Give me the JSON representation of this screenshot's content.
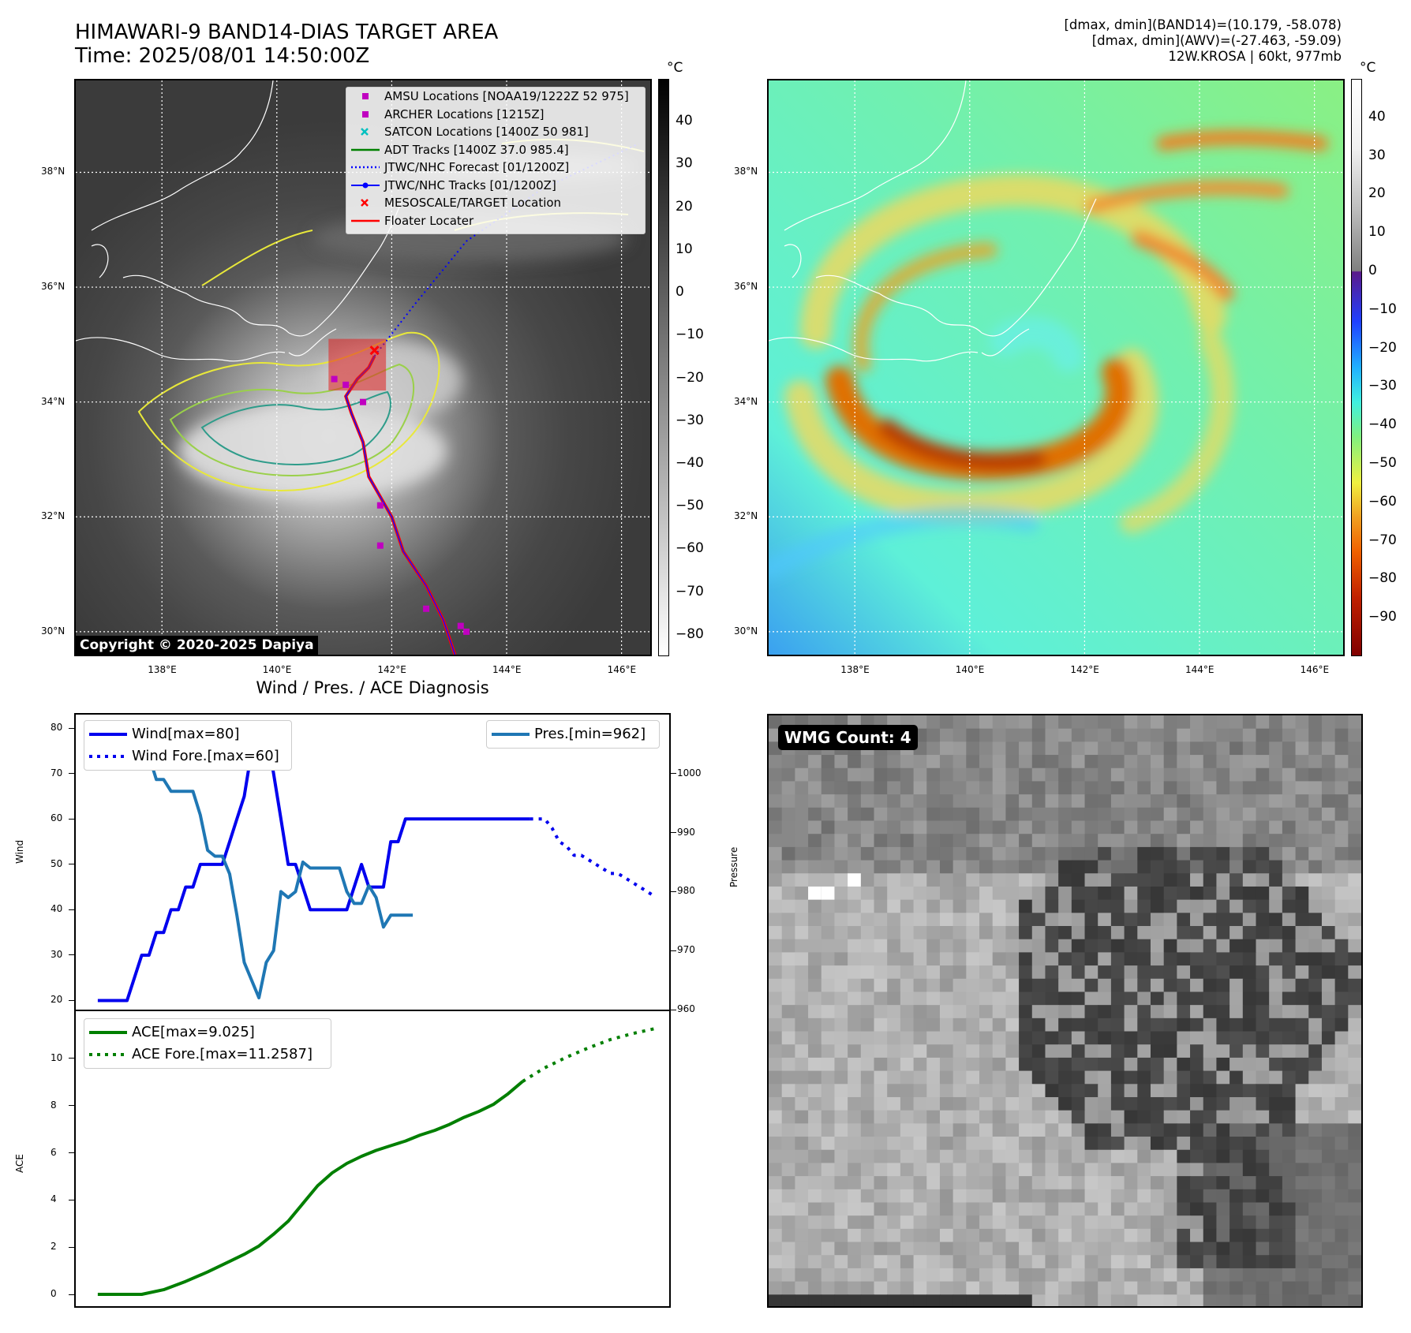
{
  "header": {
    "title": "HIMAWARI-9 BAND14-DIAS TARGET AREA",
    "time": "Time: 2025/08/01 14:50:00Z",
    "info_lines": [
      "[dmax, dmin](BAND14)=(10.179, -58.078)",
      "[dmax, dmin](AWV)=(-27.463, -59.09)",
      "12W.KROSA | 60kt, 977mb"
    ]
  },
  "map": {
    "lat_labels": [
      "38°N",
      "36°N",
      "34°N",
      "32°N",
      "30°N"
    ],
    "lat_values": [
      38,
      36,
      34,
      32,
      30
    ],
    "lon_labels": [
      "138°E",
      "140°E",
      "142°E",
      "144°E",
      "146°E"
    ],
    "lon_values": [
      138,
      140,
      142,
      144,
      146
    ],
    "lon_range": [
      136.5,
      146.5
    ],
    "lat_range": [
      29.6,
      39.6
    ],
    "copyright": "Copyright © 2020-2025 Dapiya",
    "legend": [
      {
        "label": "AMSU Locations [NOAA19/1222Z 52 975]",
        "marker": "square",
        "color": "#c000c0"
      },
      {
        "label": "ARCHER Locations [1215Z]",
        "marker": "square",
        "color": "#c000c0"
      },
      {
        "label": "SATCON Locations [1400Z 50 981]",
        "marker": "x",
        "color": "#00c0c0"
      },
      {
        "label": "ADT Tracks [1400Z 37.0 985.4]",
        "marker": "line",
        "color": "#008000"
      },
      {
        "label": "JTWC/NHC Forecast [01/1200Z]",
        "marker": "dotted",
        "color": "#0000ff"
      },
      {
        "label": "JTWC/NHC Tracks [01/1200Z]",
        "marker": "line-dot",
        "color": "#0000ff"
      },
      {
        "label": "MESOSCALE/TARGET Location",
        "marker": "x",
        "color": "#ff0000"
      },
      {
        "label": "Floater Locater",
        "marker": "line",
        "color": "#ff0000"
      }
    ],
    "track_color": "#ff0000",
    "forecast_color": "#0000ff"
  },
  "colorbar_gray": {
    "unit": "°C",
    "ticks": [
      "40",
      "30",
      "20",
      "10",
      "0",
      "−10",
      "−20",
      "−30",
      "−40",
      "−50",
      "−60",
      "−70",
      "−80"
    ],
    "tick_values": [
      40,
      30,
      20,
      10,
      0,
      -10,
      -20,
      -30,
      -40,
      -50,
      -60,
      -70,
      -80
    ],
    "range": [
      -85,
      50
    ]
  },
  "colorbar_color": {
    "unit": "°C",
    "ticks": [
      "40",
      "30",
      "20",
      "10",
      "0",
      "−10",
      "−20",
      "−30",
      "−40",
      "−50",
      "−60",
      "−70",
      "−80",
      "−90"
    ],
    "tick_values": [
      40,
      30,
      20,
      10,
      0,
      -10,
      -20,
      -30,
      -40,
      -50,
      -60,
      -70,
      -80,
      -90
    ],
    "range": [
      -100,
      50
    ]
  },
  "chart_data": [
    {
      "type": "line",
      "title": "Wind / Pres. / ACE Diagnosis",
      "ylabel": "Wind",
      "ylabel_right": "Pressure",
      "ylim": [
        18,
        83
      ],
      "ylim_right": [
        960,
        1010
      ],
      "xlim": [
        -1,
        80
      ],
      "yticks": [
        "80",
        "70",
        "60",
        "50",
        "40",
        "30",
        "20"
      ],
      "ytick_values": [
        80,
        70,
        60,
        50,
        40,
        30,
        20
      ],
      "yticks_right": [
        "1000",
        "990",
        "980",
        "970",
        "960"
      ],
      "ytick_right_values": [
        1000,
        990,
        980,
        970,
        960
      ],
      "legend_left": [
        "Wind[max=80]",
        "Wind Fore.[max=60]"
      ],
      "legend_right": [
        "Pres.[min=962]"
      ],
      "series": [
        {
          "name": "Wind[max=80]",
          "axis": "left",
          "color": "#0000ee",
          "style": "solid",
          "x": [
            2,
            3,
            4,
            5,
            6,
            7,
            8,
            9,
            10,
            11,
            12,
            13,
            14,
            15,
            16,
            17,
            18,
            19,
            20,
            21,
            22,
            23,
            24,
            25,
            26,
            27,
            28,
            29,
            30,
            31,
            32,
            33,
            34,
            35,
            36,
            37,
            38,
            39,
            40,
            41,
            42,
            43,
            44,
            45,
            46,
            47,
            48,
            49,
            50,
            51,
            52,
            53,
            54,
            55,
            56,
            57,
            58,
            59,
            60,
            61
          ],
          "values": [
            20,
            20,
            20,
            20,
            20,
            25,
            30,
            30,
            35,
            35,
            40,
            40,
            45,
            45,
            50,
            50,
            50,
            50,
            55,
            60,
            65,
            75,
            80,
            80,
            70,
            60,
            50,
            50,
            45,
            40,
            40,
            40,
            40,
            40,
            40,
            45,
            50,
            45,
            45,
            45,
            55,
            55,
            60,
            60,
            60,
            60,
            60,
            60,
            60,
            60,
            60,
            60,
            60,
            60,
            60,
            60,
            60,
            60,
            60,
            60
          ]
        },
        {
          "name": "Wind Fore.[max=60]",
          "axis": "left",
          "color": "#0000ee",
          "style": "dotted",
          "x": [
            61,
            62,
            63,
            64,
            65,
            66,
            67,
            68,
            69,
            70,
            71,
            72,
            73,
            74,
            75,
            76,
            77,
            78
          ],
          "values": [
            60,
            60,
            60,
            58,
            55,
            54,
            52,
            52,
            51,
            50,
            49,
            48,
            48,
            47,
            46,
            45,
            44,
            43
          ]
        },
        {
          "name": "Pres.[min=962]",
          "axis": "right",
          "color": "#1f77b4",
          "style": "solid",
          "x": [
            2,
            3,
            4,
            5,
            6,
            7,
            8,
            9,
            10,
            11,
            12,
            13,
            14,
            15,
            16,
            17,
            18,
            19,
            20,
            21,
            22,
            23,
            24,
            25,
            26,
            27,
            28,
            29,
            30,
            31,
            32,
            33,
            34,
            35,
            36,
            37,
            38,
            39,
            40,
            41,
            42,
            43,
            44,
            45
          ],
          "values": [
            1008,
            1008,
            1008,
            1008,
            1004,
            1004,
            1003,
            1003,
            999,
            999,
            997,
            997,
            997,
            997,
            993,
            987,
            986,
            986,
            983,
            976,
            968,
            965,
            962,
            968,
            970,
            980,
            979,
            980,
            985,
            984,
            984,
            984,
            984,
            984,
            980,
            978,
            978,
            981,
            979,
            974,
            976,
            976,
            976,
            976
          ]
        }
      ]
    },
    {
      "type": "line",
      "ylabel": "ACE",
      "ylim": [
        -0.5,
        12
      ],
      "xlim": [
        -1,
        80
      ],
      "yticks": [
        "10",
        "8",
        "6",
        "4",
        "2",
        "0"
      ],
      "ytick_values": [
        10,
        8,
        6,
        4,
        2,
        0
      ],
      "legend": [
        "ACE[max=9.025]",
        "ACE Fore.[max=11.2587]"
      ],
      "series": [
        {
          "name": "ACE[max=9.025]",
          "color": "#007f00",
          "style": "solid",
          "x": [
            2,
            8,
            11,
            14,
            17,
            20,
            22,
            24,
            26,
            28,
            30,
            32,
            34,
            36,
            38,
            40,
            42,
            44,
            46,
            48,
            50,
            52,
            54,
            56,
            58,
            60
          ],
          "values": [
            0,
            0,
            0.2,
            0.55,
            0.95,
            1.4,
            1.7,
            2.05,
            2.55,
            3.1,
            3.85,
            4.6,
            5.15,
            5.55,
            5.85,
            6.1,
            6.3,
            6.5,
            6.75,
            6.95,
            7.2,
            7.5,
            7.75,
            8.05,
            8.5,
            9.025
          ]
        },
        {
          "name": "ACE Fore.[max=11.2587]",
          "color": "#007f00",
          "style": "dotted",
          "x": [
            60,
            63,
            66,
            69,
            72,
            75,
            78
          ],
          "values": [
            9.025,
            9.6,
            10.05,
            10.45,
            10.8,
            11.05,
            11.2587
          ]
        }
      ]
    }
  ],
  "wmg": {
    "badge": "WMG Count: 4"
  }
}
